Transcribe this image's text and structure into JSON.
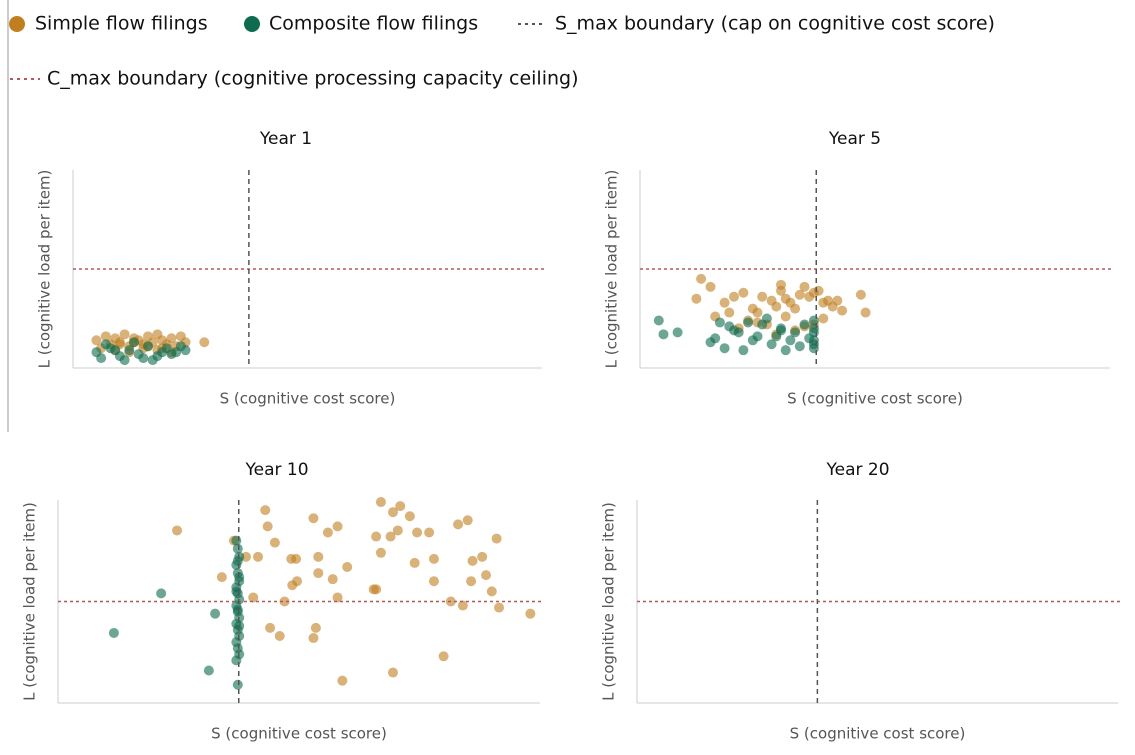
{
  "chart_data": {
    "type": "scatter",
    "x_label": "S (cognitive cost score)",
    "y_label": "L (cognitive load per item)",
    "xlim": [
      0,
      100
    ],
    "ylim": [
      0,
      100
    ],
    "s_max": 37.5,
    "c_max": 50,
    "s_max_label": "S_max boundary (cap on cognitive cost score)",
    "c_max_label": "C_max boundary (cognitive processing capacity ceiling)",
    "s_max_color": "#555555",
    "c_max_color": "#b5585a",
    "series": [
      {
        "name": "Simple flow filings",
        "color": "#c07f1f"
      },
      {
        "name": "Composite flow filings",
        "color": "#0e6b4f"
      }
    ],
    "panels": [
      {
        "title": "Year 1",
        "series": [
          {
            "x": [
              5,
              7,
              8,
              9,
              10,
              11,
              12,
              13,
              14,
              15,
              16,
              17,
              18,
              19,
              20,
              21,
              22,
              23,
              24,
              6,
              9,
              12,
              15,
              18,
              21,
              10,
              13,
              16,
              19,
              28
            ],
            "y": [
              14,
              16,
              12,
              15,
              13,
              17,
              11,
              15,
              14,
              12,
              16,
              13,
              17,
              14,
              12,
              15,
              11,
              16,
              13,
              10,
              9,
              8,
              10,
              9,
              8,
              12,
              13,
              11,
              10,
              13
            ]
          },
          {
            "x": [
              5,
              6,
              8,
              10,
              12,
              14,
              16,
              18,
              20,
              22,
              24,
              7,
              11,
              15,
              19,
              23,
              13,
              17,
              21,
              9
            ],
            "y": [
              8,
              5,
              10,
              6,
              9,
              7,
              11,
              6,
              10,
              8,
              9,
              12,
              4,
              5,
              8,
              11,
              13,
              4,
              7,
              9
            ]
          }
        ]
      },
      {
        "title": "Year 5",
        "series": [
          {
            "x": [
              13,
              15,
              12,
              18,
              20,
              22,
              24,
              25,
              26,
              28,
              29,
              30,
              31,
              32,
              33,
              34,
              35,
              36,
              37,
              38,
              39,
              40,
              41,
              42,
              47,
              48,
              16,
              19,
              23,
              27,
              31,
              35,
              39,
              43,
              21,
              25,
              29,
              33,
              37,
              30
            ],
            "y": [
              45,
              41,
              35,
              33,
              36,
              38,
              30,
              28,
              36,
              34,
              31,
              39,
              35,
              33,
              30,
              37,
              41,
              36,
              38,
              39,
              33,
              34,
              31,
              34,
              37,
              28,
              26,
              28,
              24,
              22,
              26,
              21,
              25,
              29,
              20,
              23,
              17,
              19,
              22,
              42
            ]
          },
          {
            "x": [
              4,
              5,
              8,
              15,
              16,
              17,
              18,
              19,
              20,
              21,
              22,
              23,
              24,
              25,
              26,
              28,
              29,
              30,
              31,
              32,
              33,
              34,
              35,
              36,
              37,
              37,
              37,
              37,
              37,
              37,
              30,
              27
            ],
            "y": [
              24,
              17,
              18,
              13,
              15,
              23,
              10,
              21,
              19,
              18,
              9,
              23,
              14,
              16,
              22,
              12,
              16,
              20,
              9,
              14,
              18,
              11,
              22,
              15,
              10,
              14,
              18,
              20,
              24,
              12,
              19,
              25
            ]
          }
        ]
      },
      {
        "title": "Year 10",
        "series": [
          {
            "x": [
              24.7,
              34,
              36.5,
              39,
              40.5,
              41.5,
              43,
              43.5,
              45,
              44,
              46,
              47,
              48.4,
              48.6,
              49.4,
              49.6,
              53,
              54,
              54,
              53.5,
              53,
              56,
              57,
              58,
              58,
              59,
              60,
              65.5,
              66,
              66,
              67,
              67,
              69,
              69.5,
              69.5,
              70.5,
              71,
              73,
              74,
              74.5,
              77,
              78,
              78,
              80,
              81.5,
              83,
              84,
              85,
              85.7,
              86,
              88,
              88.8,
              90,
              91,
              91.5,
              98
            ],
            "y": [
              85,
              62,
              80,
              72,
              52,
              72,
              95,
              87,
              79,
              37,
              33,
              50,
              71,
              58,
              71,
              60,
              91,
              72,
              64,
              37,
              32,
              84,
              61,
              87,
              52,
              11,
              67,
              56,
              56,
              82,
              74,
              99,
              82,
              94,
              15,
              85,
              97,
              92,
              69,
              84,
              84,
              71,
              60,
              23,
              50,
              88,
              48,
              90,
              60,
              70,
              72,
              63,
              55,
              81,
              47,
              44
            ]
          },
          {
            "x": [
              11.6,
              21.4,
              32.6,
              31.3,
              37.3,
              37,
              37.3,
              37.6,
              37,
              37.3,
              37.6,
              37,
              37.3,
              37.6,
              37,
              37.3,
              37.6,
              37,
              37.3,
              37.6,
              37,
              37.3,
              37.6,
              37,
              37.3,
              37.6,
              37,
              37.3,
              37.6
            ],
            "y": [
              34.5,
              54,
              44,
              16,
              9,
              80,
              76,
              72,
              68,
              64,
              60,
              57,
              54,
              51,
              48,
              45,
              42,
              39,
              36,
              33,
              30,
              27,
              24,
              21,
              70,
              62,
              55,
              46,
              38
            ]
          }
        ]
      },
      {
        "title": "Year 20",
        "series": [
          {
            "x": [],
            "y": []
          },
          {
            "x": [],
            "y": []
          }
        ]
      }
    ]
  }
}
